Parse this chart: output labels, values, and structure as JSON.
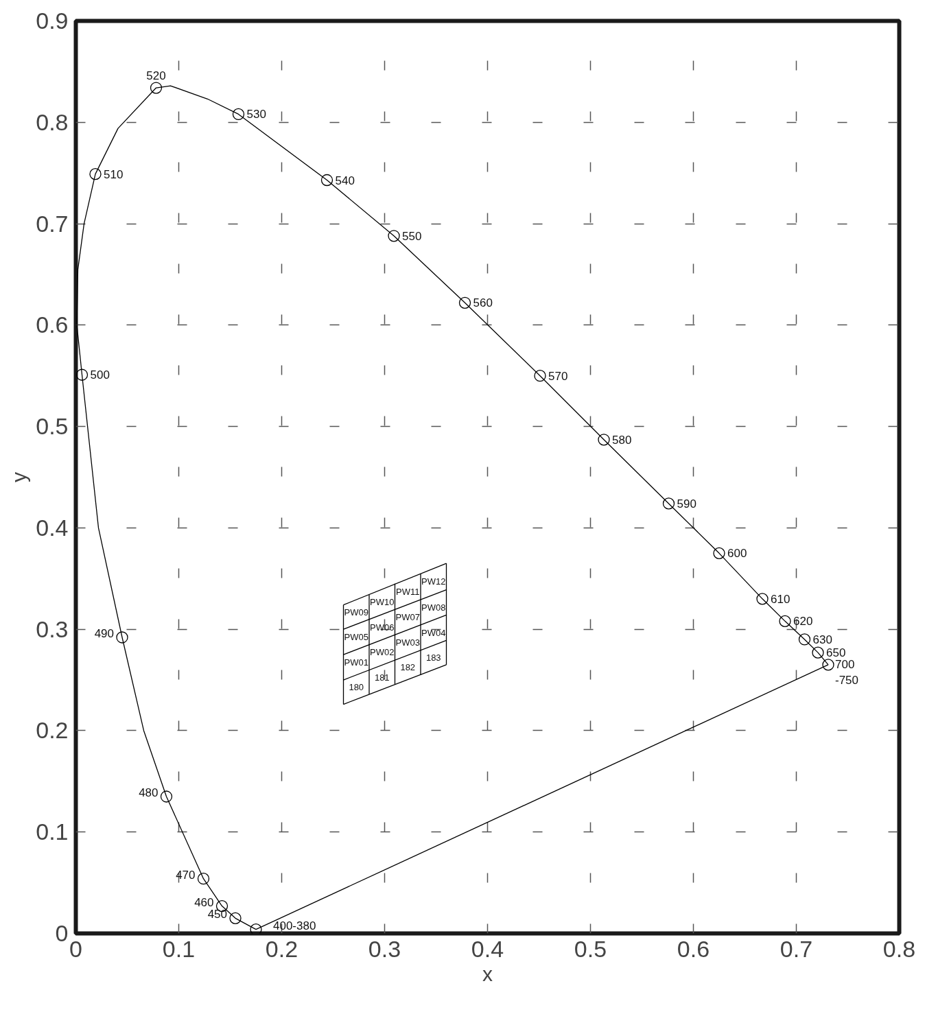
{
  "chart_data": {
    "type": "line",
    "xlabel": "x",
    "ylabel": "y",
    "xlim": [
      0,
      0.8
    ],
    "ylim": [
      0,
      0.9
    ],
    "xticks": [
      0,
      0.1,
      0.2,
      0.3,
      0.4,
      0.5,
      0.6,
      0.7,
      0.8
    ],
    "yticks": [
      0,
      0.1,
      0.2,
      0.3,
      0.4,
      0.5,
      0.6,
      0.7,
      0.8,
      0.9
    ],
    "grid": true,
    "series": [
      {
        "color": "#000000",
        "x": [
          0.175,
          0.155,
          0.142,
          0.124,
          0.088,
          0.066,
          0.045,
          0.022,
          0.006,
          0.001,
          0.002,
          0.008,
          0.019,
          0.041,
          0.078,
          0.092,
          0.128,
          0.158,
          0.244,
          0.309,
          0.378,
          0.451,
          0.513,
          0.576,
          0.625,
          0.667,
          0.689,
          0.708,
          0.721,
          0.731
        ],
        "values": [
          0.004,
          0.015,
          0.027,
          0.054,
          0.135,
          0.2,
          0.292,
          0.4,
          0.551,
          0.6,
          0.655,
          0.7,
          0.749,
          0.794,
          0.834,
          0.836,
          0.823,
          0.808,
          0.743,
          0.688,
          0.622,
          0.55,
          0.487,
          0.424,
          0.375,
          0.33,
          0.308,
          0.29,
          0.277,
          0.265
        ]
      },
      {
        "color": "#000000",
        "x": [
          0.731,
          0.175
        ],
        "values": [
          0.265,
          0.004
        ]
      },
      {
        "type": "scatter",
        "marker": "circle",
        "color": "#000000",
        "x": [
          0.175,
          0.155,
          0.142,
          0.124,
          0.088,
          0.045,
          0.006,
          0.019,
          0.078,
          0.158,
          0.244,
          0.309,
          0.378,
          0.451,
          0.513,
          0.576,
          0.625,
          0.667,
          0.689,
          0.708,
          0.721,
          0.731
        ],
        "values": [
          0.004,
          0.015,
          0.027,
          0.054,
          0.135,
          0.292,
          0.551,
          0.749,
          0.834,
          0.808,
          0.743,
          0.688,
          0.622,
          0.55,
          0.487,
          0.424,
          0.375,
          0.33,
          0.308,
          0.29,
          0.277,
          0.265
        ]
      },
      {
        "color": "#000000",
        "x": [
          0.26,
          0.36
        ],
        "values": [
          0.324,
          0.365
        ]
      },
      {
        "color": "#000000",
        "x": [
          0.26,
          0.36
        ],
        "values": [
          0.3,
          0.339
        ]
      },
      {
        "color": "#000000",
        "x": [
          0.26,
          0.36
        ],
        "values": [
          0.275,
          0.314
        ]
      },
      {
        "color": "#000000",
        "x": [
          0.26,
          0.36
        ],
        "values": [
          0.25,
          0.289
        ]
      },
      {
        "color": "#000000",
        "x": [
          0.26,
          0.36
        ],
        "values": [
          0.226,
          0.265
        ]
      },
      {
        "color": "#000000",
        "x": [
          0.26,
          0.26
        ],
        "values": [
          0.226,
          0.324
        ]
      },
      {
        "color": "#000000",
        "x": [
          0.285,
          0.285
        ],
        "values": [
          0.236,
          0.334
        ]
      },
      {
        "color": "#000000",
        "x": [
          0.31,
          0.31
        ],
        "values": [
          0.246,
          0.345
        ]
      },
      {
        "color": "#000000",
        "x": [
          0.335,
          0.335
        ],
        "values": [
          0.255,
          0.355
        ]
      },
      {
        "color": "#000000",
        "x": [
          0.36,
          0.36
        ],
        "values": [
          0.265,
          0.365
        ]
      }
    ],
    "annotations": [
      "PW09",
      "PW10",
      "PW11",
      "PW12",
      "PW05",
      "PW06",
      "PW07",
      "PW08",
      "PW01",
      "PW02",
      "PW03",
      "PW04",
      "180",
      "181",
      "182",
      "183",
      {
        "text": "400-380",
        "x": 0.175,
        "y": 0.004
      },
      {
        "text": "450",
        "x": 0.155,
        "y": 0.015
      },
      {
        "text": "460",
        "x": 0.142,
        "y": 0.027
      },
      {
        "text": "470",
        "x": 0.124,
        "y": 0.054
      },
      {
        "text": "480",
        "x": 0.088,
        "y": 0.135
      },
      {
        "text": "490",
        "x": 0.045,
        "y": 0.292
      },
      {
        "text": "500",
        "x": 0.006,
        "y": 0.551
      },
      {
        "text": "510",
        "x": 0.019,
        "y": 0.749
      },
      {
        "text": "520",
        "x": 0.078,
        "y": 0.834
      },
      {
        "text": "530",
        "x": 0.158,
        "y": 0.808
      },
      {
        "text": "540",
        "x": 0.244,
        "y": 0.743
      },
      {
        "text": "550",
        "x": 0.309,
        "y": 0.688
      },
      {
        "text": "560",
        "x": 0.378,
        "y": 0.622
      },
      {
        "text": "570",
        "x": 0.451,
        "y": 0.55
      },
      {
        "text": "580",
        "x": 0.513,
        "y": 0.487
      },
      {
        "text": "590",
        "x": 0.576,
        "y": 0.424
      },
      {
        "text": "600",
        "x": 0.625,
        "y": 0.375
      },
      {
        "text": "610",
        "x": 0.667,
        "y": 0.33
      },
      {
        "text": "620",
        "x": 0.689,
        "y": 0.308
      },
      {
        "text": "630",
        "x": 0.708,
        "y": 0.29
      },
      {
        "text": "650",
        "x": 0.721,
        "y": 0.277
      },
      {
        "text": "700\n-750",
        "x": 0.731,
        "y": 0.265
      }
    ]
  }
}
